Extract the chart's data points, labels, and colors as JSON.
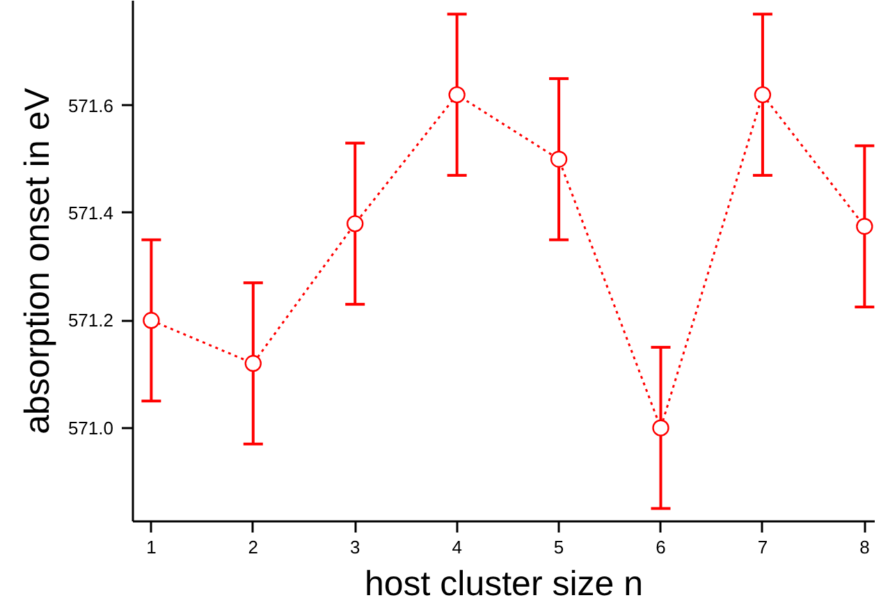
{
  "chart_data": {
    "type": "line",
    "xlabel": "host cluster size n",
    "ylabel": "absorption onset in eV",
    "x": [
      1,
      2,
      3,
      4,
      5,
      6,
      7,
      8
    ],
    "series": [
      {
        "color": "#ff0000",
        "values": [
          571.2,
          571.12,
          571.38,
          571.62,
          571.5,
          571.0,
          571.62,
          571.375
        ],
        "errors": [
          0.15,
          0.15,
          0.15,
          0.15,
          0.15,
          0.15,
          0.15,
          0.15
        ]
      }
    ],
    "xlim": [
      0.82,
      8.1
    ],
    "ylim": [
      570.826,
      571.795
    ],
    "xticks": [
      1,
      2,
      3,
      4,
      5,
      6,
      7,
      8
    ],
    "yticks": [
      {
        "value": 571.0,
        "label": "571.0"
      },
      {
        "value": 571.2,
        "label": "571.2"
      },
      {
        "value": 571.4,
        "label": "571.4"
      },
      {
        "value": 571.6,
        "label": "571.6"
      }
    ],
    "marker": "circle",
    "line_style": "dotted",
    "grid": false
  }
}
